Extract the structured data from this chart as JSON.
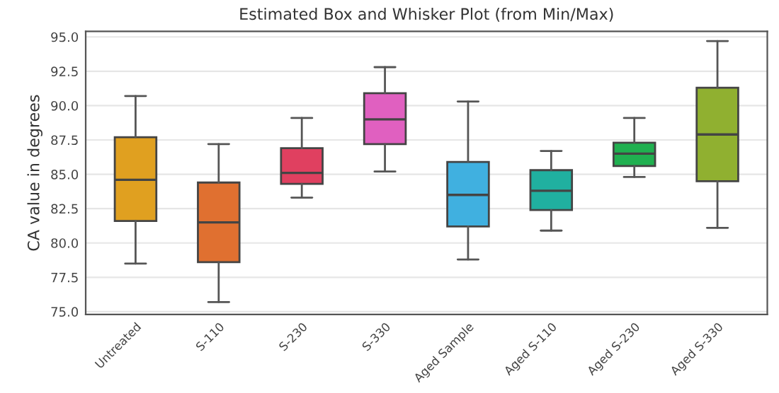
{
  "chart_data": {
    "type": "box",
    "title": "Estimated Box and Whisker Plot (from Min/Max)",
    "ylabel": "CA value in degrees",
    "categories": [
      "Untreated",
      "S-110",
      "S-230",
      "S-330",
      "Aged Sample",
      "Aged S-110",
      "Aged S-230",
      "Aged S-330"
    ],
    "colors": [
      "#e0a020",
      "#e07030",
      "#e04060",
      "#e060c0",
      "#40b0e0",
      "#20b0a0",
      "#20b050",
      "#90b030"
    ],
    "boxes": [
      {
        "low": 78.5,
        "q1": 81.6,
        "median": 84.6,
        "q3": 87.7,
        "high": 90.7
      },
      {
        "low": 75.7,
        "q1": 78.6,
        "median": 81.5,
        "q3": 84.4,
        "high": 87.2
      },
      {
        "low": 83.3,
        "q1": 84.3,
        "median": 85.1,
        "q3": 86.9,
        "high": 89.1
      },
      {
        "low": 85.2,
        "q1": 87.2,
        "median": 89.0,
        "q3": 90.9,
        "high": 92.8
      },
      {
        "low": 78.8,
        "q1": 81.2,
        "median": 83.5,
        "q3": 85.9,
        "high": 90.3
      },
      {
        "low": 80.9,
        "q1": 82.4,
        "median": 83.8,
        "q3": 85.3,
        "high": 86.7
      },
      {
        "low": 84.8,
        "q1": 85.6,
        "median": 86.5,
        "q3": 87.3,
        "high": 89.1
      },
      {
        "low": 81.1,
        "q1": 84.5,
        "median": 87.9,
        "q3": 91.3,
        "high": 94.7
      }
    ],
    "ylim": [
      74.8,
      95.4
    ],
    "yticks": [
      {
        "value": 75,
        "label": "75.0"
      },
      {
        "value": 77.5,
        "label": "77.5"
      },
      {
        "value": 80,
        "label": "80.0"
      },
      {
        "value": 82.5,
        "label": "82.5"
      },
      {
        "value": 85,
        "label": "85.0"
      },
      {
        "value": 87.5,
        "label": "87.5"
      },
      {
        "value": 90,
        "label": "90.0"
      },
      {
        "value": 92.5,
        "label": "92.5"
      },
      {
        "value": 95,
        "label": "95.0"
      }
    ],
    "grid": "y"
  }
}
